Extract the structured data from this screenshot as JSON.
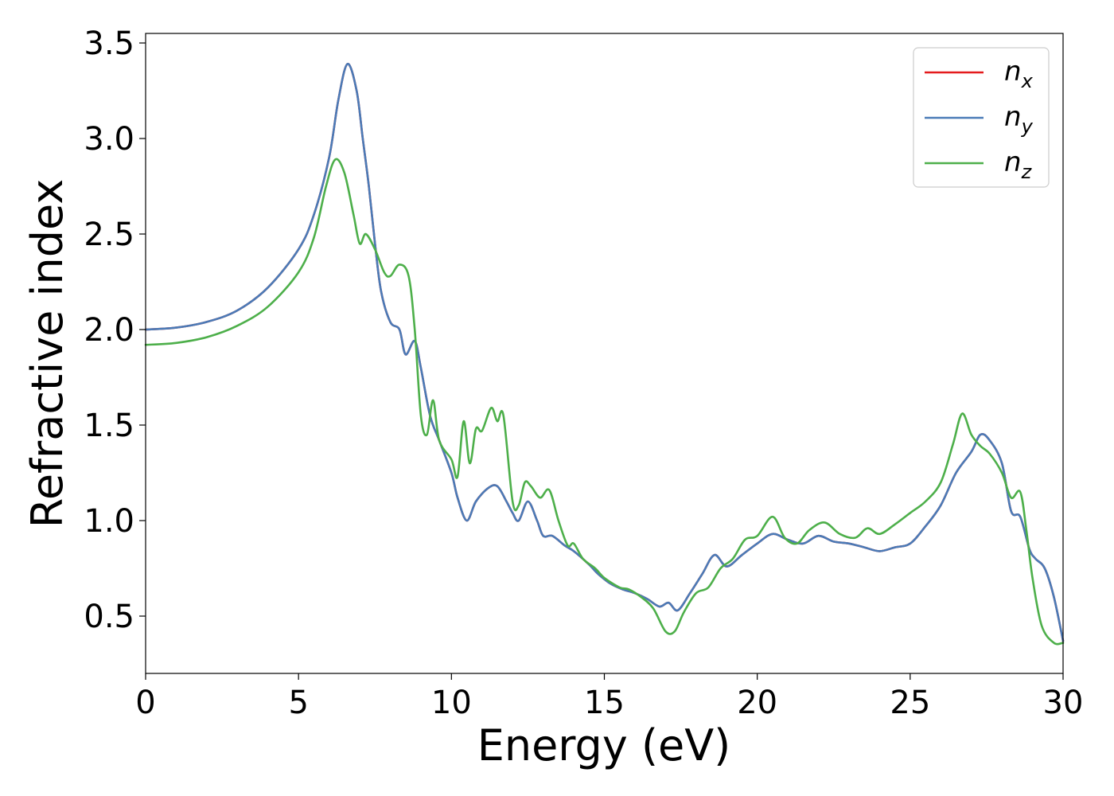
{
  "chart_data": {
    "type": "line",
    "xlabel": "Energy (eV)",
    "ylabel": "Refractive index",
    "xlim": [
      0,
      30
    ],
    "ylim": [
      0.2,
      3.55
    ],
    "xticks": [
      0,
      5,
      10,
      15,
      20,
      25,
      30
    ],
    "xtick_labels": [
      "0",
      "5",
      "10",
      "15",
      "20",
      "25",
      "30"
    ],
    "yticks": [
      0.5,
      1.0,
      1.5,
      2.0,
      2.5,
      3.0,
      3.5
    ],
    "ytick_labels": [
      "0.5",
      "1.0",
      "1.5",
      "2.0",
      "2.5",
      "3.0",
      "3.5"
    ],
    "grid": false,
    "legend_position": "top-right",
    "series": [
      {
        "name": "n",
        "subscript": "x",
        "color": "#e41a1c",
        "points": [
          [
            0,
            2.0
          ],
          [
            1,
            2.01
          ],
          [
            2,
            2.04
          ],
          [
            3,
            2.1
          ],
          [
            4,
            2.22
          ],
          [
            5,
            2.42
          ],
          [
            5.5,
            2.6
          ],
          [
            6,
            2.9
          ],
          [
            6.3,
            3.2
          ],
          [
            6.6,
            3.39
          ],
          [
            6.9,
            3.25
          ],
          [
            7.1,
            3.0
          ],
          [
            7.3,
            2.75
          ],
          [
            7.5,
            2.45
          ],
          [
            7.7,
            2.2
          ],
          [
            8.0,
            2.04
          ],
          [
            8.3,
            2.0
          ],
          [
            8.5,
            1.87
          ],
          [
            8.8,
            1.94
          ],
          [
            9.0,
            1.8
          ],
          [
            9.3,
            1.55
          ],
          [
            9.6,
            1.42
          ],
          [
            10.0,
            1.25
          ],
          [
            10.2,
            1.12
          ],
          [
            10.5,
            1.0
          ],
          [
            10.8,
            1.1
          ],
          [
            11.2,
            1.17
          ],
          [
            11.5,
            1.18
          ],
          [
            11.8,
            1.1
          ],
          [
            12.0,
            1.04
          ],
          [
            12.2,
            1.0
          ],
          [
            12.5,
            1.1
          ],
          [
            12.8,
            1.0
          ],
          [
            13.0,
            0.92
          ],
          [
            13.3,
            0.92
          ],
          [
            13.7,
            0.87
          ],
          [
            14.0,
            0.84
          ],
          [
            14.5,
            0.77
          ],
          [
            14.8,
            0.72
          ],
          [
            15.2,
            0.67
          ],
          [
            15.6,
            0.64
          ],
          [
            16.0,
            0.62
          ],
          [
            16.4,
            0.59
          ],
          [
            16.8,
            0.55
          ],
          [
            17.1,
            0.57
          ],
          [
            17.4,
            0.53
          ],
          [
            17.8,
            0.62
          ],
          [
            18.2,
            0.72
          ],
          [
            18.6,
            0.82
          ],
          [
            19.0,
            0.76
          ],
          [
            19.5,
            0.82
          ],
          [
            20.0,
            0.88
          ],
          [
            20.5,
            0.93
          ],
          [
            21.0,
            0.9
          ],
          [
            21.5,
            0.88
          ],
          [
            22.0,
            0.92
          ],
          [
            22.5,
            0.89
          ],
          [
            23.0,
            0.88
          ],
          [
            23.5,
            0.86
          ],
          [
            24.0,
            0.84
          ],
          [
            24.5,
            0.86
          ],
          [
            25.0,
            0.88
          ],
          [
            25.5,
            0.97
          ],
          [
            26.0,
            1.08
          ],
          [
            26.5,
            1.25
          ],
          [
            27.0,
            1.36
          ],
          [
            27.3,
            1.45
          ],
          [
            27.6,
            1.42
          ],
          [
            28.0,
            1.3
          ],
          [
            28.3,
            1.05
          ],
          [
            28.6,
            1.02
          ],
          [
            28.9,
            0.85
          ],
          [
            29.1,
            0.8
          ],
          [
            29.4,
            0.75
          ],
          [
            29.7,
            0.6
          ],
          [
            30.0,
            0.37
          ]
        ]
      },
      {
        "name": "n",
        "subscript": "y",
        "color": "#4a7bb7",
        "points": [
          [
            0,
            2.0
          ],
          [
            1,
            2.01
          ],
          [
            2,
            2.04
          ],
          [
            3,
            2.1
          ],
          [
            4,
            2.22
          ],
          [
            5,
            2.42
          ],
          [
            5.5,
            2.6
          ],
          [
            6,
            2.9
          ],
          [
            6.3,
            3.2
          ],
          [
            6.6,
            3.39
          ],
          [
            6.9,
            3.25
          ],
          [
            7.1,
            3.0
          ],
          [
            7.3,
            2.75
          ],
          [
            7.5,
            2.45
          ],
          [
            7.7,
            2.2
          ],
          [
            8.0,
            2.04
          ],
          [
            8.3,
            2.0
          ],
          [
            8.5,
            1.87
          ],
          [
            8.8,
            1.94
          ],
          [
            9.0,
            1.8
          ],
          [
            9.3,
            1.55
          ],
          [
            9.6,
            1.42
          ],
          [
            10.0,
            1.25
          ],
          [
            10.2,
            1.12
          ],
          [
            10.5,
            1.0
          ],
          [
            10.8,
            1.1
          ],
          [
            11.2,
            1.17
          ],
          [
            11.5,
            1.18
          ],
          [
            11.8,
            1.1
          ],
          [
            12.0,
            1.04
          ],
          [
            12.2,
            1.0
          ],
          [
            12.5,
            1.1
          ],
          [
            12.8,
            1.0
          ],
          [
            13.0,
            0.92
          ],
          [
            13.3,
            0.92
          ],
          [
            13.7,
            0.87
          ],
          [
            14.0,
            0.84
          ],
          [
            14.5,
            0.77
          ],
          [
            14.8,
            0.72
          ],
          [
            15.2,
            0.67
          ],
          [
            15.6,
            0.64
          ],
          [
            16.0,
            0.62
          ],
          [
            16.4,
            0.59
          ],
          [
            16.8,
            0.55
          ],
          [
            17.1,
            0.57
          ],
          [
            17.4,
            0.53
          ],
          [
            17.8,
            0.62
          ],
          [
            18.2,
            0.72
          ],
          [
            18.6,
            0.82
          ],
          [
            19.0,
            0.76
          ],
          [
            19.5,
            0.82
          ],
          [
            20.0,
            0.88
          ],
          [
            20.5,
            0.93
          ],
          [
            21.0,
            0.9
          ],
          [
            21.5,
            0.88
          ],
          [
            22.0,
            0.92
          ],
          [
            22.5,
            0.89
          ],
          [
            23.0,
            0.88
          ],
          [
            23.5,
            0.86
          ],
          [
            24.0,
            0.84
          ],
          [
            24.5,
            0.86
          ],
          [
            25.0,
            0.88
          ],
          [
            25.5,
            0.97
          ],
          [
            26.0,
            1.08
          ],
          [
            26.5,
            1.25
          ],
          [
            27.0,
            1.36
          ],
          [
            27.3,
            1.45
          ],
          [
            27.6,
            1.42
          ],
          [
            28.0,
            1.3
          ],
          [
            28.3,
            1.05
          ],
          [
            28.6,
            1.02
          ],
          [
            28.9,
            0.85
          ],
          [
            29.1,
            0.8
          ],
          [
            29.4,
            0.75
          ],
          [
            29.7,
            0.6
          ],
          [
            30.0,
            0.37
          ]
        ]
      },
      {
        "name": "n",
        "subscript": "z",
        "color": "#4daf4a",
        "points": [
          [
            0,
            1.92
          ],
          [
            1,
            1.93
          ],
          [
            2,
            1.96
          ],
          [
            3,
            2.02
          ],
          [
            4,
            2.12
          ],
          [
            5,
            2.3
          ],
          [
            5.5,
            2.48
          ],
          [
            5.9,
            2.75
          ],
          [
            6.2,
            2.89
          ],
          [
            6.5,
            2.82
          ],
          [
            6.8,
            2.6
          ],
          [
            7.0,
            2.45
          ],
          [
            7.2,
            2.5
          ],
          [
            7.5,
            2.42
          ],
          [
            7.8,
            2.3
          ],
          [
            8.0,
            2.28
          ],
          [
            8.3,
            2.34
          ],
          [
            8.6,
            2.28
          ],
          [
            8.8,
            2.0
          ],
          [
            9.0,
            1.55
          ],
          [
            9.2,
            1.45
          ],
          [
            9.4,
            1.63
          ],
          [
            9.6,
            1.42
          ],
          [
            10.0,
            1.32
          ],
          [
            10.2,
            1.23
          ],
          [
            10.4,
            1.52
          ],
          [
            10.6,
            1.3
          ],
          [
            10.8,
            1.48
          ],
          [
            11.0,
            1.47
          ],
          [
            11.3,
            1.59
          ],
          [
            11.5,
            1.52
          ],
          [
            11.7,
            1.55
          ],
          [
            12.0,
            1.1
          ],
          [
            12.2,
            1.08
          ],
          [
            12.4,
            1.2
          ],
          [
            12.6,
            1.18
          ],
          [
            12.9,
            1.12
          ],
          [
            13.2,
            1.16
          ],
          [
            13.5,
            1.0
          ],
          [
            13.8,
            0.87
          ],
          [
            14.0,
            0.88
          ],
          [
            14.3,
            0.8
          ],
          [
            14.7,
            0.75
          ],
          [
            15.0,
            0.7
          ],
          [
            15.5,
            0.65
          ],
          [
            15.8,
            0.64
          ],
          [
            16.2,
            0.6
          ],
          [
            16.6,
            0.54
          ],
          [
            17.0,
            0.42
          ],
          [
            17.3,
            0.42
          ],
          [
            17.6,
            0.52
          ],
          [
            18.0,
            0.62
          ],
          [
            18.4,
            0.65
          ],
          [
            18.8,
            0.75
          ],
          [
            19.2,
            0.8
          ],
          [
            19.6,
            0.9
          ],
          [
            20.0,
            0.92
          ],
          [
            20.5,
            1.02
          ],
          [
            20.9,
            0.91
          ],
          [
            21.3,
            0.88
          ],
          [
            21.7,
            0.95
          ],
          [
            22.2,
            0.99
          ],
          [
            22.7,
            0.93
          ],
          [
            23.2,
            0.91
          ],
          [
            23.6,
            0.96
          ],
          [
            24.0,
            0.93
          ],
          [
            24.5,
            0.98
          ],
          [
            25.0,
            1.04
          ],
          [
            25.5,
            1.1
          ],
          [
            26.0,
            1.2
          ],
          [
            26.4,
            1.4
          ],
          [
            26.7,
            1.56
          ],
          [
            27.0,
            1.45
          ],
          [
            27.3,
            1.39
          ],
          [
            27.6,
            1.35
          ],
          [
            28.0,
            1.25
          ],
          [
            28.3,
            1.12
          ],
          [
            28.6,
            1.15
          ],
          [
            28.8,
            0.95
          ],
          [
            29.0,
            0.7
          ],
          [
            29.3,
            0.45
          ],
          [
            29.7,
            0.36
          ],
          [
            30.0,
            0.36
          ]
        ]
      }
    ]
  }
}
